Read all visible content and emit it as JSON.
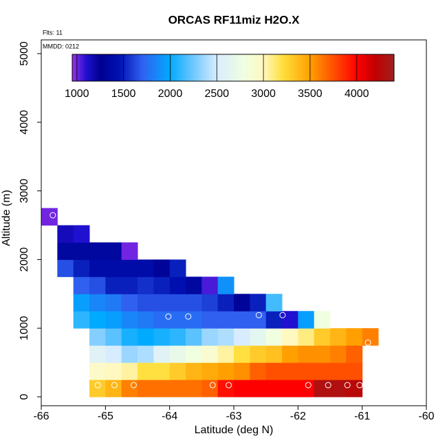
{
  "chart_data": {
    "type": "heatmap",
    "title": "ORCAS RF11miz H2O.X",
    "annotations": [
      "Flts: 11",
      "MMDD: 0212"
    ],
    "x_label": "Latitude (deg N)",
    "y_label": "Altitude (m)",
    "xlim": [
      -66,
      -60
    ],
    "xticks": [
      -66,
      -65,
      -64,
      -63,
      -62,
      -61,
      -60
    ],
    "ylim": [
      -130,
      5200
    ],
    "yticks": [
      0,
      1000,
      2000,
      3000,
      4000,
      5000
    ],
    "x_edges": [
      -66,
      -65.75,
      -65.5,
      -65.25,
      -65,
      -64.75,
      -64.5,
      -64.25,
      -64,
      -63.75,
      -63.5,
      -63.25,
      -63,
      -62.75,
      -62.5,
      -62.25,
      -62,
      -61.75,
      -61.5,
      -61.25,
      -61,
      -60.75
    ],
    "y_edges": [
      0,
      250,
      500,
      750,
      1000,
      1250,
      1500,
      1750,
      2000,
      2250,
      2500,
      2750
    ],
    "values": [
      [
        null,
        null,
        null,
        3300,
        3400,
        3600,
        3650,
        3650,
        3650,
        3650,
        3700,
        3950,
        4000,
        4000,
        4000,
        4000,
        4000,
        4300,
        4300,
        4250,
        null
      ],
      [
        null,
        null,
        null,
        2950,
        3000,
        3050,
        3200,
        3200,
        3300,
        3400,
        3450,
        3500,
        3550,
        3700,
        3750,
        3750,
        3750,
        3750,
        3750,
        3750,
        null
      ],
      [
        null,
        null,
        null,
        2600,
        2500,
        2350,
        2400,
        2600,
        2700,
        2800,
        2900,
        3050,
        3200,
        3300,
        3350,
        3500,
        3550,
        3550,
        3600,
        3700,
        null
      ],
      [
        null,
        null,
        null,
        2300,
        2200,
        2050,
        2000,
        2050,
        2100,
        2200,
        2350,
        2400,
        2500,
        2650,
        2800,
        3000,
        3100,
        3300,
        3400,
        3500,
        3600
      ],
      [
        null,
        null,
        2100,
        2000,
        1950,
        1850,
        1800,
        1750,
        1750,
        1750,
        1700,
        1700,
        1700,
        1700,
        1500,
        1100,
        1950,
        2800,
        null,
        null,
        null
      ],
      [
        null,
        null,
        1950,
        1850,
        1800,
        1700,
        1650,
        1650,
        1650,
        1650,
        1600,
        1500,
        1300,
        1500,
        2150,
        null,
        null,
        null,
        null,
        null,
        null
      ],
      [
        null,
        null,
        1700,
        1650,
        1500,
        1500,
        1550,
        1500,
        1450,
        1350,
        1050,
        1900,
        null,
        null,
        null,
        null,
        null,
        null,
        null,
        null,
        null
      ],
      [
        null,
        1650,
        1500,
        1400,
        1400,
        1400,
        1400,
        1300,
        1500,
        null,
        null,
        null,
        null,
        null,
        null,
        null,
        null,
        null,
        null,
        null,
        null
      ],
      [
        null,
        1350,
        1350,
        1350,
        1350,
        1000,
        null,
        null,
        null,
        null,
        null,
        null,
        null,
        null,
        null,
        null,
        null,
        null,
        null,
        null,
        null
      ],
      [
        null,
        1150,
        1100,
        null,
        null,
        null,
        null,
        null,
        null,
        null,
        null,
        null,
        null,
        null,
        null,
        null,
        null,
        null,
        null,
        null,
        null
      ],
      [
        1000,
        null,
        null,
        null,
        null,
        null,
        null,
        null,
        null,
        null,
        null,
        null,
        null,
        null,
        null,
        null,
        null,
        null,
        null,
        null,
        null
      ]
    ],
    "points": {
      "x": [
        -65.82,
        -65.12,
        -64.86,
        -64.56,
        -63.33,
        -63.08,
        -61.84,
        -61.53,
        -61.23,
        -61.04,
        -64.02,
        -63.71,
        -62.61,
        -62.24,
        -60.91
      ],
      "y": [
        2645,
        170,
        170,
        170,
        170,
        170,
        170,
        170,
        170,
        170,
        1170,
        1170,
        1190,
        1190,
        790
      ],
      "color": "#ffffff"
    },
    "clim": [
      950,
      4400
    ],
    "cticks": [
      1000,
      1500,
      2000,
      2500,
      3000,
      3500,
      4000
    ],
    "colormap": [
      {
        "value": 950,
        "color": "#9b30e8"
      },
      {
        "value": 1100,
        "color": "#2010d0"
      },
      {
        "value": 1250,
        "color": "#000090"
      },
      {
        "value": 1450,
        "color": "#0010b0"
      },
      {
        "value": 1700,
        "color": "#3060f0"
      },
      {
        "value": 2000,
        "color": "#00aaff"
      },
      {
        "value": 2250,
        "color": "#70c8ff"
      },
      {
        "value": 2500,
        "color": "#d8ecff"
      },
      {
        "value": 2800,
        "color": "#f0ffe0"
      },
      {
        "value": 3000,
        "color": "#fff8c0"
      },
      {
        "value": 3200,
        "color": "#ffe040"
      },
      {
        "value": 3500,
        "color": "#ffa000"
      },
      {
        "value": 3750,
        "color": "#ff5000"
      },
      {
        "value": 4000,
        "color": "#ff0000"
      },
      {
        "value": 4200,
        "color": "#c00000"
      },
      {
        "value": 4400,
        "color": "#a02020"
      }
    ]
  }
}
